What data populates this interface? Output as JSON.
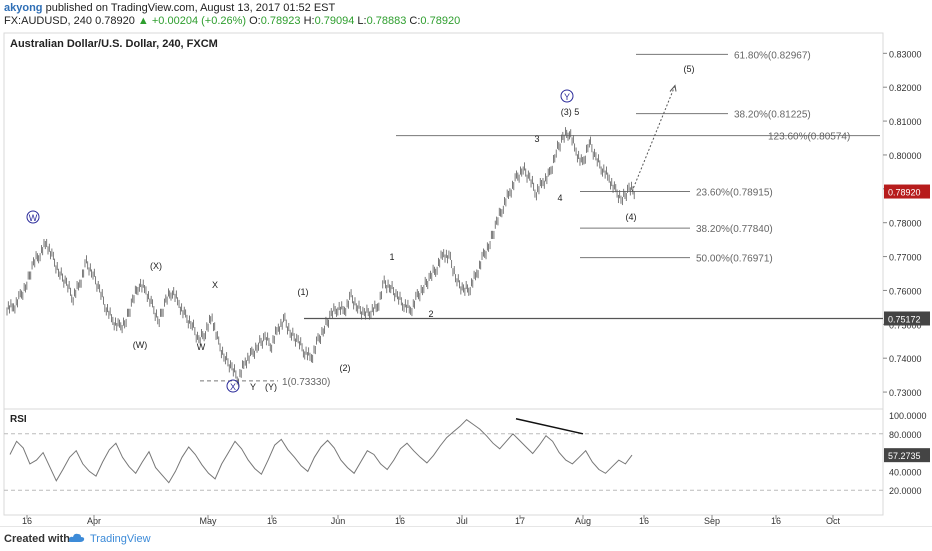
{
  "header": {
    "author": "akyong",
    "published": "published on TradingView.com, August 13, 2017 01:52 EST",
    "symbol": "FX:AUDUSD, 240",
    "last": "0.78920",
    "change": "+0.00204 (+0.26%)",
    "o_label": "O:",
    "o": "0.78923",
    "h_label": "H:",
    "h": "0.79094",
    "l_label": "L:",
    "l": "0.78883",
    "c_label": "C:",
    "c": "0.78920"
  },
  "footer": {
    "created_with": "Created with",
    "brand": "TradingView"
  },
  "colors": {
    "up": "#2e9e2e",
    "candle": "#5a5a5a",
    "level": "#555555",
    "price_tag": "#b71c1c",
    "wave_circle": "#2b2b9a"
  },
  "chart_data": {
    "type": "line",
    "title": "Australian Dollar/U.S. Dollar, 240, FXCM",
    "x_ticks": [
      "16",
      "Apr",
      "May",
      "16",
      "Jun",
      "16",
      "Jul",
      "17",
      "Aug",
      "16",
      "Sep",
      "16",
      "Oct"
    ],
    "ylim": [
      0.725,
      0.836
    ],
    "y_ticks": [
      "0.83000",
      "0.82000",
      "0.81000",
      "0.80000",
      "0.79000",
      "0.78000",
      "0.77000",
      "0.76000",
      "0.75000",
      "0.74000",
      "0.73000"
    ],
    "series": [
      {
        "values": [
          0.755,
          0.758,
          0.762,
          0.768,
          0.771,
          0.774,
          0.769,
          0.765,
          0.762,
          0.758,
          0.762,
          0.768,
          0.765,
          0.76,
          0.755,
          0.751,
          0.749,
          0.751,
          0.757,
          0.762,
          0.76,
          0.755,
          0.751,
          0.757,
          0.76,
          0.756,
          0.752,
          0.75,
          0.745,
          0.748,
          0.752,
          0.744,
          0.74,
          0.737,
          0.734,
          0.739,
          0.741,
          0.744,
          0.746,
          0.744,
          0.749,
          0.751,
          0.747,
          0.745,
          0.742,
          0.74,
          0.745,
          0.749,
          0.753,
          0.755,
          0.754,
          0.758,
          0.755,
          0.753,
          0.754,
          0.755,
          0.762,
          0.761,
          0.758,
          0.756,
          0.754,
          0.758,
          0.761,
          0.764,
          0.767,
          0.771,
          0.769,
          0.763,
          0.76,
          0.761,
          0.765,
          0.77,
          0.774,
          0.78,
          0.785,
          0.789,
          0.793,
          0.796,
          0.793,
          0.789,
          0.792,
          0.794,
          0.801,
          0.805,
          0.807,
          0.801,
          0.797,
          0.804,
          0.799,
          0.796,
          0.793,
          0.789,
          0.787,
          0.79,
          0.7892
        ]
      }
    ],
    "current_price": "0.78920",
    "horizontal_level": "0.75172",
    "fib_levels": [
      {
        "label": "61.80%(0.82967)",
        "value": 0.8297
      },
      {
        "label": "38.20%(0.81225)",
        "value": 0.8122
      },
      {
        "label": "123.60%(0.80574)",
        "value": 0.8057
      },
      {
        "label": "23.60%(0.78915)",
        "value": 0.7892
      },
      {
        "label": "38.20%(0.77840)",
        "value": 0.7784
      },
      {
        "label": "50.00%(0.76971)",
        "value": 0.7697
      },
      {
        "label": "1(0.73330)",
        "value": 0.7333
      }
    ],
    "wave_labels": [
      {
        "text": "W",
        "circled": true
      },
      {
        "text": "(X)"
      },
      {
        "text": "X"
      },
      {
        "text": "(W)"
      },
      {
        "text": "W"
      },
      {
        "text": "X",
        "circled": true
      },
      {
        "text": "Y"
      },
      {
        "text": "(Y)"
      },
      {
        "text": "(1)"
      },
      {
        "text": "(2)"
      },
      {
        "text": "1"
      },
      {
        "text": "2"
      },
      {
        "text": "3"
      },
      {
        "text": "4"
      },
      {
        "text": "(3) 5"
      },
      {
        "text": "Y",
        "circled": true
      },
      {
        "text": "(4)"
      },
      {
        "text": "(5)"
      }
    ],
    "rsi": {
      "label": "RSI",
      "value": "57.2735",
      "y_ticks": [
        "100.0000",
        "80.0000",
        "60.0000",
        "40.0000",
        "20.0000"
      ],
      "values": [
        58,
        72,
        65,
        48,
        52,
        60,
        45,
        30,
        42,
        55,
        62,
        48,
        40,
        35,
        50,
        63,
        70,
        55,
        45,
        38,
        50,
        61,
        44,
        36,
        28,
        40,
        55,
        66,
        58,
        47,
        38,
        32,
        48,
        60,
        72,
        64,
        52,
        43,
        37,
        52,
        68,
        74,
        63,
        55,
        46,
        40,
        55,
        66,
        73,
        65,
        52,
        44,
        38,
        50,
        62,
        58,
        48,
        42,
        52,
        64,
        70,
        62,
        55,
        49,
        57,
        67,
        76,
        82,
        88,
        95,
        90,
        85,
        78,
        70,
        64,
        72,
        80,
        73,
        66,
        59,
        68,
        78,
        72,
        60,
        52,
        48,
        55,
        62,
        50,
        42,
        38,
        45,
        52,
        48,
        57.3
      ]
    }
  }
}
